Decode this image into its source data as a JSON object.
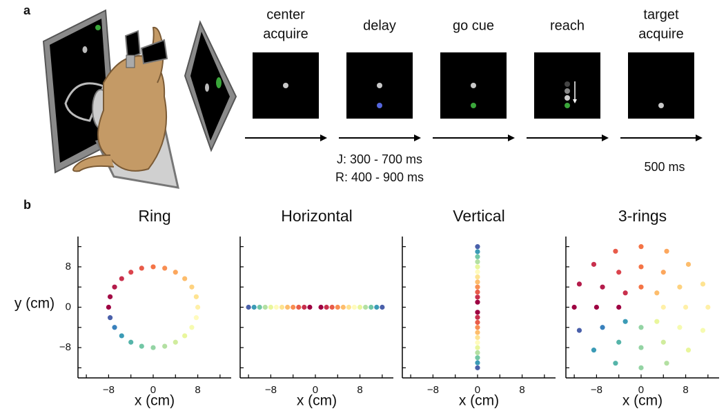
{
  "panel_labels": [
    "a",
    "b"
  ],
  "task": {
    "epochs": [
      [
        "center",
        "acquire"
      ],
      [
        "delay"
      ],
      [
        "go cue"
      ],
      [
        "reach"
      ],
      [
        "target",
        "acquire"
      ]
    ],
    "delay_durations": [
      "J: 300 - 700 ms",
      "R: 400 - 900 ms"
    ],
    "target_duration": "500 ms"
  },
  "chart_data": [
    {
      "type": "scatter",
      "title": "Ring",
      "xlabel": "x (cm)",
      "ylabel": "y (cm)",
      "x": [
        -7.73,
        -6.93,
        -5.66,
        -4,
        -2.07,
        0,
        2.07,
        4,
        5.66,
        6.93,
        7.73,
        8,
        7.73,
        6.93,
        5.66,
        4,
        2.07,
        0,
        -2.07,
        -4,
        -5.66,
        -6.93,
        -7.73,
        -8
      ],
      "y": [
        -2.07,
        -4,
        -5.66,
        -6.93,
        -7.73,
        -8,
        -7.73,
        -6.93,
        -5.66,
        -4,
        -2.07,
        0,
        2.07,
        4,
        5.66,
        6.93,
        7.73,
        8,
        7.73,
        6.93,
        5.66,
        4,
        2.07,
        0
      ],
      "colors": [
        "#4a60aa",
        "#3880bc",
        "#3b9bb6",
        "#55b4a9",
        "#72c7a5",
        "#94d4a4",
        "#b3e0a2",
        "#d0ec9d",
        "#e9f69c",
        "#f6fbb0",
        "#fffbbd",
        "#fff0a8",
        "#fee391",
        "#fed27f",
        "#fdbd6c",
        "#fca75d",
        "#f88e52",
        "#f47446",
        "#e85b49",
        "#db444d",
        "#c8304d",
        "#b41c4b",
        "#a30c46",
        "#9e0142"
      ],
      "xlim": [
        -13.5,
        14
      ],
      "ylim": [
        -14,
        14
      ],
      "xticks": [
        {
          "value": -8,
          "label": "−8"
        },
        0,
        8
      ],
      "yticks": [
        {
          "value": -8,
          "label": "−8"
        },
        0,
        8
      ],
      "tick_marks": [
        -12,
        -8,
        -4,
        0,
        4,
        8,
        12
      ]
    },
    {
      "type": "scatter",
      "title": "Horizontal",
      "xlabel": "x (cm)",
      "x": [
        -12,
        -11,
        -10,
        -9,
        -8,
        -7,
        -6,
        -5,
        -4,
        -3,
        -2,
        -1,
        1,
        2,
        3,
        4,
        5,
        6,
        7,
        8,
        9,
        10,
        11,
        12
      ],
      "y": [
        0,
        0,
        0,
        0,
        0,
        0,
        0,
        0,
        0,
        0,
        0,
        0,
        0,
        0,
        0,
        0,
        0,
        0,
        0,
        0,
        0,
        0,
        0,
        0
      ],
      "colors": [
        "#4a60aa",
        "#3b9bb6",
        "#72c7a5",
        "#b3e0a2",
        "#e9f69c",
        "#fffbbd",
        "#fee391",
        "#fdbd6c",
        "#f88e52",
        "#e85b49",
        "#c8304d",
        "#9e0142",
        "#9e0142",
        "#c8304d",
        "#e85b49",
        "#f88e52",
        "#fdbd6c",
        "#fee391",
        "#fffbbd",
        "#e9f69c",
        "#b3e0a2",
        "#72c7a5",
        "#3b9bb6",
        "#4a60aa"
      ],
      "xlim": [
        -13.5,
        14
      ],
      "ylim": [
        -14,
        14
      ],
      "xticks": [
        {
          "value": -8,
          "label": "−8"
        },
        0,
        8
      ],
      "tick_marks": [
        -12,
        -8,
        -4,
        0,
        4,
        8,
        12
      ]
    },
    {
      "type": "scatter",
      "title": "Vertical",
      "xlabel": "x (cm)",
      "x": [
        0,
        0,
        0,
        0,
        0,
        0,
        0,
        0,
        0,
        0,
        0,
        0,
        0,
        0,
        0,
        0,
        0,
        0,
        0,
        0,
        0,
        0,
        0,
        0
      ],
      "y": [
        12,
        11,
        10,
        9,
        8,
        7,
        6,
        5,
        4,
        3,
        2,
        1,
        -1,
        -2,
        -3,
        -4,
        -5,
        -6,
        -7,
        -8,
        -9,
        -10,
        -11,
        -12
      ],
      "colors": [
        "#4a60aa",
        "#3b9bb6",
        "#72c7a5",
        "#b3e0a2",
        "#e9f69c",
        "#fffbbd",
        "#fee391",
        "#fdbd6c",
        "#f88e52",
        "#e85b49",
        "#c8304d",
        "#9e0142",
        "#9e0142",
        "#c8304d",
        "#e85b49",
        "#f88e52",
        "#fdbd6c",
        "#fee391",
        "#fffbbd",
        "#e9f69c",
        "#b3e0a2",
        "#72c7a5",
        "#3b9bb6",
        "#4a60aa"
      ],
      "xlim": [
        -13.5,
        14
      ],
      "ylim": [
        -14,
        14
      ],
      "xticks": [
        {
          "value": -8,
          "label": "−8"
        },
        0,
        8
      ],
      "tick_marks": [
        -12,
        -8,
        -4,
        0,
        4,
        8,
        12
      ]
    },
    {
      "type": "scatter",
      "title": "3-rings",
      "xlabel": "x (cm)",
      "x": [
        4,
        2.83,
        0,
        -2.83,
        -4,
        -2.83,
        0,
        2.83,
        8,
        6.93,
        4,
        0,
        -4,
        -6.93,
        -8,
        -6.93,
        -4,
        0,
        4,
        6.93,
        12,
        11.09,
        8.49,
        4.59,
        0,
        -4.59,
        -8.49,
        -11.09,
        -12,
        -11.09,
        -8.49,
        -4.59,
        0,
        4.59,
        8.49,
        11.09
      ],
      "y": [
        0,
        2.83,
        4,
        2.83,
        0,
        -2.83,
        -4,
        -2.83,
        0,
        4,
        6.93,
        8,
        6.93,
        4,
        0,
        -4,
        -6.93,
        -8,
        -6.93,
        -4,
        0,
        4.59,
        8.49,
        11.09,
        12,
        11.09,
        8.49,
        4.59,
        0,
        -4.59,
        -8.49,
        -11.09,
        -12,
        -11.09,
        -8.49,
        -4.59
      ],
      "colors": [
        "#fff0a8",
        "#fdbd6c",
        "#f47446",
        "#c8304d",
        "#9e0142",
        "#3b9bb6",
        "#94d4a4",
        "#e9f69c",
        "#fff0a8",
        "#fed27f",
        "#fca75d",
        "#f47446",
        "#db444d",
        "#b41c4b",
        "#9e0142",
        "#3880bc",
        "#55b4a9",
        "#94d4a4",
        "#d0ec9d",
        "#f6fbb0",
        "#fff0a8",
        "#fee391",
        "#fdbd6c",
        "#fca75d",
        "#f47446",
        "#e85b49",
        "#c8304d",
        "#b41c4b",
        "#9e0142",
        "#4a60aa",
        "#3b9bb6",
        "#55b4a9",
        "#94d4a4",
        "#b3e0a2",
        "#e9f69c",
        "#f6fbb0"
      ],
      "xlim": [
        -13.5,
        14
      ],
      "ylim": [
        -14,
        14
      ],
      "xticks": [
        {
          "value": -8,
          "label": "−8"
        },
        0,
        8
      ],
      "tick_marks": [
        -12,
        -8,
        -4,
        0,
        4,
        8,
        12
      ]
    }
  ]
}
